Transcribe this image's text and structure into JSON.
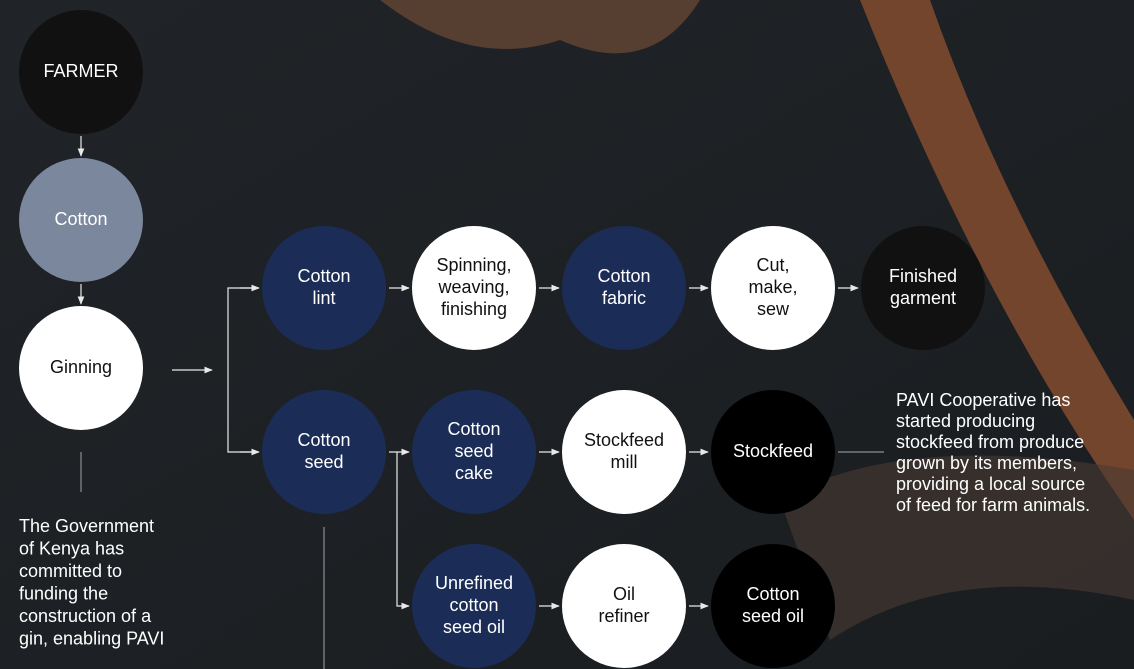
{
  "nodes": [
    {
      "lines": [
        "FARMER"
      ],
      "color": "#111111"
    },
    {
      "lines": [
        "Cotton"
      ],
      "color": "#7b879c"
    },
    {
      "lines": [
        "Ginning"
      ],
      "color": "#ffffff"
    },
    {
      "lines": [
        "Cotton",
        "lint"
      ],
      "color": "#1b2d57"
    },
    {
      "lines": [
        "Spinning,",
        "weaving,",
        "finishing"
      ],
      "color": "#ffffff"
    },
    {
      "lines": [
        "Cotton",
        "fabric"
      ],
      "color": "#1b2d57"
    },
    {
      "lines": [
        "Cut,",
        "make,",
        "sew"
      ],
      "color": "#ffffff"
    },
    {
      "lines": [
        "Finished",
        "garment"
      ],
      "color": "#111111"
    },
    {
      "lines": [
        "Cotton",
        "seed"
      ],
      "color": "#1b2d57"
    },
    {
      "lines": [
        "Cotton",
        "seed",
        "cake"
      ],
      "color": "#1b2d57"
    },
    {
      "lines": [
        "Stockfeed",
        "mill"
      ],
      "color": "#ffffff"
    },
    {
      "lines": [
        "Stockfeed"
      ],
      "color": "#000000"
    },
    {
      "lines": [
        "Unrefined",
        "cotton",
        "seed oil"
      ],
      "color": "#1b2d57"
    },
    {
      "lines": [
        "Oil",
        "refiner"
      ],
      "color": "#ffffff"
    },
    {
      "lines": [
        "Cotton",
        "seed oil"
      ],
      "color": "#000000"
    }
  ],
  "notes": {
    "government": [
      "The Government",
      "of Kenya has",
      "committed to",
      "funding the",
      "construction of a",
      "gin, enabling PAVI"
    ],
    "pavi": [
      "PAVI Cooperative has",
      "started producing",
      "stockfeed from produce",
      "grown by its members,",
      "providing a local source",
      "of feed for farm animals."
    ]
  }
}
